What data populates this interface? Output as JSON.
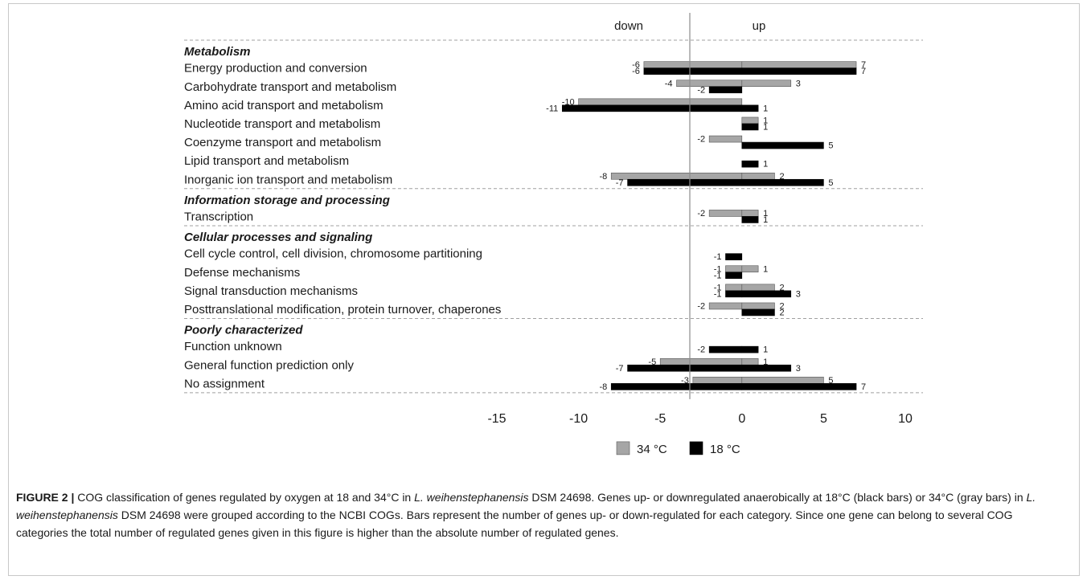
{
  "chart_data": {
    "type": "bar",
    "orientation": "horizontal",
    "direction_labels": [
      "down",
      "up"
    ],
    "xlim": [
      -15,
      10
    ],
    "xticks": [
      "-15",
      "-10",
      "-5",
      "0",
      "5",
      "10"
    ],
    "grid": false,
    "legend_placement": "bottom",
    "series": [
      {
        "name": "34 °C",
        "color": "#a6a6a6"
      },
      {
        "name": "18 °C",
        "color": "#000000"
      }
    ],
    "groups": [
      {
        "name": "Metabolism",
        "categories": [
          {
            "label": "Energy production and conversion",
            "s34": {
              "down": -6,
              "up": 7
            },
            "s18": {
              "down": -6,
              "up": 7
            }
          },
          {
            "label": "Carbohydrate transport and metabolism",
            "s34": {
              "down": -4,
              "up": 3
            },
            "s18": {
              "down": -2,
              "up": null
            }
          },
          {
            "label": "Amino acid transport and metabolism",
            "s34": {
              "down": -10,
              "up": null
            },
            "s18": {
              "down": -11,
              "up": 1
            }
          },
          {
            "label": "Nucleotide transport and metabolism",
            "s34": {
              "down": null,
              "up": 1
            },
            "s18": {
              "down": null,
              "up": 1
            }
          },
          {
            "label": "Coenzyme transport and metabolism",
            "s34": {
              "down": -2,
              "up": null
            },
            "s18": {
              "down": null,
              "up": 5
            }
          },
          {
            "label": "Lipid transport and metabolism",
            "s34": {
              "down": null,
              "up": null
            },
            "s18": {
              "down": null,
              "up": 1
            }
          },
          {
            "label": "Inorganic ion transport and metabolism",
            "s34": {
              "down": -8,
              "up": 2
            },
            "s18": {
              "down": -7,
              "up": 5
            }
          }
        ]
      },
      {
        "name": "Information storage and processing",
        "categories": [
          {
            "label": "Transcription",
            "s34": {
              "down": -2,
              "up": 1
            },
            "s18": {
              "down": null,
              "up": 1
            }
          }
        ]
      },
      {
        "name": "Cellular processes and signaling",
        "categories": [
          {
            "label": "Cell cycle control, cell division, chromosome partitioning",
            "s34": {
              "down": null,
              "up": null
            },
            "s18": {
              "down": -1,
              "up": null
            }
          },
          {
            "label": "Defense mechanisms",
            "s34": {
              "down": -1,
              "up": 1
            },
            "s18": {
              "down": -1,
              "up": null
            }
          },
          {
            "label": "Signal transduction mechanisms",
            "s34": {
              "down": -1,
              "up": 2
            },
            "s18": {
              "down": -1,
              "up": 3
            }
          },
          {
            "label": "Posttranslational modification, protein turnover, chaperones",
            "s34": {
              "down": -2,
              "up": 2
            },
            "s18": {
              "down": null,
              "up": 2
            }
          }
        ]
      },
      {
        "name": "Poorly characterized",
        "categories": [
          {
            "label": "Function unknown",
            "s34": {
              "down": null,
              "up": null
            },
            "s18": {
              "down": -2,
              "up": 1
            }
          },
          {
            "label": "General function prediction only",
            "s34": {
              "down": -5,
              "up": 1
            },
            "s18": {
              "down": -7,
              "up": 3
            }
          },
          {
            "label": "No assignment",
            "s34": {
              "down": -3,
              "up": 5
            },
            "s18": {
              "down": -8,
              "up": 7
            }
          }
        ]
      }
    ]
  },
  "caption": {
    "label": "FIGURE 2 |",
    "t1": " COG classification of genes regulated by oxygen at 18 and 34°C in ",
    "sp1": "L. weihenstephanensis",
    "t2": " DSM 24698. Genes up- or downregulated anaerobically at 18°C (black bars) or 34°C (gray bars) in ",
    "sp2": "L. weihenstephanensis",
    "t3": " DSM 24698 were grouped according to the NCBI COGs. Bars represent the number of genes up- or down-regulated for each category. Since one gene can belong to several COG categories the total number of regulated genes given in this figure is higher than the absolute number of regulated genes."
  }
}
